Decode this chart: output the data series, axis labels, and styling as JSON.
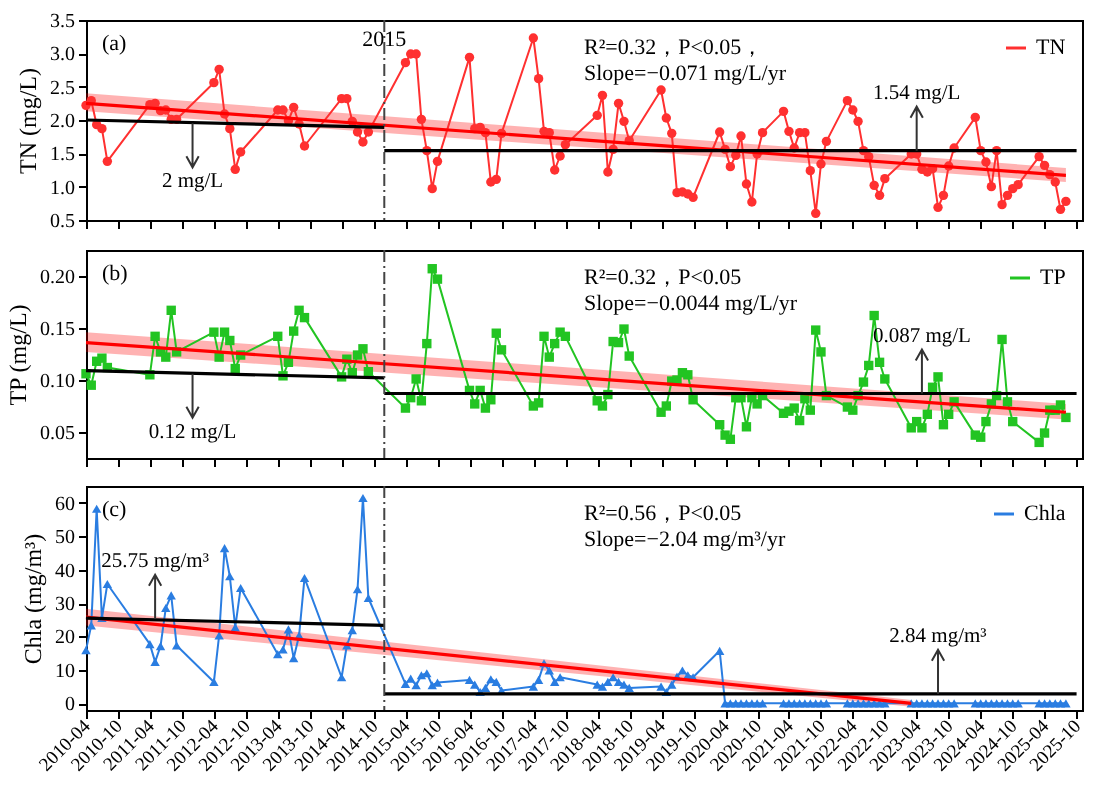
{
  "chart_data": [
    {
      "type": "line",
      "ylabel": "TN (mg/L)",
      "marker": "circle",
      "legend": "top right",
      "tick_labels": "y",
      "xlim": [
        "2010-04",
        "2025-11"
      ],
      "xticks": [
        "2010-04",
        "2010-10",
        "2011-04",
        "2011-10",
        "2012-04",
        "2012-10",
        "2013-04",
        "2013-10",
        "2014-04",
        "2014-10",
        "2015-04",
        "2015-10",
        "2016-04",
        "2016-10",
        "2017-04",
        "2017-10",
        "2018-04",
        "2018-10",
        "2019-04",
        "2019-10",
        "2020-04",
        "2020-10",
        "2021-04",
        "2021-10",
        "2022-04",
        "2022-10",
        "2023-04",
        "2023-10",
        "2024-04",
        "2024-10",
        "2025-04",
        "2025-10"
      ],
      "ylim": [
        0.5,
        3.5
      ],
      "yticks": [
        0.5,
        {
          "value": 1,
          "label": "1.0"
        },
        1.5,
        {
          "value": 2,
          "label": "2.0"
        },
        2.5,
        {
          "value": 3,
          "label": "3.0"
        },
        3.5
      ],
      "series": [
        {
          "name": "TN",
          "color": "#ff3030",
          "x": [
            "2010-04",
            "2010-05",
            "2010-06",
            "2010-07",
            "2010-08",
            "2011-04",
            "2011-05",
            "2011-06",
            "2011-07",
            "2011-08",
            "2011-09",
            "2012-04",
            "2012-05",
            "2012-06",
            "2012-07",
            "2012-08",
            "2012-09",
            "2013-04",
            "2013-05",
            "2013-06",
            "2013-07",
            "2013-08",
            "2013-09",
            "2014-04",
            "2014-05",
            "2014-06",
            "2014-07",
            "2014-08",
            "2014-09",
            "2015-04",
            "2015-05",
            "2015-06",
            "2015-07",
            "2015-08",
            "2015-09",
            "2015-10",
            "2016-04",
            "2016-05",
            "2016-06",
            "2016-07",
            "2016-08",
            "2016-09",
            "2016-10",
            "2017-04",
            "2017-05",
            "2017-06",
            "2017-07",
            "2017-08",
            "2017-09",
            "2017-10",
            "2018-04",
            "2018-05",
            "2018-06",
            "2018-07",
            "2018-08",
            "2018-09",
            "2018-10",
            "2019-04",
            "2019-05",
            "2019-06",
            "2019-07",
            "2019-08",
            "2019-09",
            "2019-10",
            "2020-03",
            "2020-04",
            "2020-05",
            "2020-06",
            "2020-07",
            "2020-08",
            "2020-09",
            "2020-10",
            "2020-11",
            "2021-03",
            "2021-04",
            "2021-05",
            "2021-06",
            "2021-07",
            "2021-08",
            "2021-09",
            "2021-10",
            "2021-11",
            "2022-03",
            "2022-04",
            "2022-05",
            "2022-06",
            "2022-07",
            "2022-08",
            "2022-09",
            "2022-10",
            "2023-03",
            "2023-04",
            "2023-05",
            "2023-06",
            "2023-07",
            "2023-08",
            "2023-09",
            "2023-10",
            "2023-11",
            "2024-03",
            "2024-04",
            "2024-05",
            "2024-06",
            "2024-07",
            "2024-08",
            "2024-09",
            "2024-10",
            "2024-11",
            "2025-03",
            "2025-04",
            "2025-05",
            "2025-06",
            "2025-07",
            "2025-08"
          ],
          "values": [
            2.22,
            2.29,
            1.93,
            1.87,
            1.38,
            2.23,
            2.25,
            2.14,
            2.15,
            2.01,
            2.01,
            2.56,
            2.76,
            2.09,
            1.87,
            1.26,
            1.52,
            2.15,
            2.15,
            1.99,
            2.19,
            1.94,
            1.61,
            2.32,
            2.32,
            1.98,
            1.82,
            1.67,
            1.82,
            2.86,
            2.99,
            2.99,
            2.01,
            1.54,
            0.97,
            1.38,
            2.94,
            1.87,
            1.89,
            1.81,
            1.07,
            1.11,
            1.8,
            3.23,
            2.62,
            1.83,
            1.81,
            1.25,
            1.46,
            1.63,
            2.07,
            2.37,
            1.22,
            1.56,
            2.25,
            1.98,
            1.69,
            2.45,
            2.03,
            1.8,
            0.91,
            0.92,
            0.89,
            0.84,
            1.82,
            1.56,
            1.3,
            1.47,
            1.76,
            1.04,
            0.77,
            1.49,
            1.81,
            2.13,
            1.83,
            1.58,
            1.81,
            1.81,
            1.24,
            0.6,
            1.34,
            1.68,
            2.29,
            2.15,
            1.98,
            1.54,
            1.45,
            1.02,
            0.87,
            1.12,
            1.49,
            1.49,
            1.26,
            1.22,
            1.27,
            0.69,
            0.87,
            1.31,
            1.58,
            2.04,
            1.54,
            1.37,
            1,
            1.54,
            0.73,
            0.87,
            0.97,
            1.03,
            1.45,
            1.32,
            1.18,
            1.07,
            0.66,
            0.78
          ]
        },
        {
          "type": "line",
          "marker": "none",
          "color": "#ff0000",
          "x": [
            "2010-04",
            "2025-08"
          ],
          "values": [
            2.25,
            1.17
          ],
          "lower": [
            2.13,
            1.07
          ],
          "upper": [
            2.4,
            1.28
          ]
        },
        {
          "type": "line",
          "marker": "none",
          "color": "#000000",
          "x": [
            "2010-04",
            "2014-12"
          ],
          "values": [
            2.0,
            1.89
          ]
        },
        {
          "type": "line",
          "marker": "none",
          "color": "#000000",
          "x": [
            "2014-12",
            "2025-10"
          ],
          "values": [
            1.54,
            1.54
          ]
        }
      ],
      "ref_lines": [
        {
          "axis": "x",
          "value": "2014-12",
          "label": "2015",
          "line_style": "dashed",
          "color": "#444444"
        }
      ],
      "annotations": [
        "(a)",
        "R²=0.32，P<0.05，",
        "Slope=−0.071 mg/L/yr",
        {
          "text": "2 mg/L",
          "x": "2011-12",
          "y": 1.95
        },
        {
          "text": "1.54 mg/L",
          "x": "2023-04",
          "y": 1.54
        }
      ]
    },
    {
      "type": "line",
      "ylabel": "TP (mg/L)",
      "marker": "square",
      "legend": "top right",
      "tick_labels": "y",
      "xlim": [
        "2010-04",
        "2025-11"
      ],
      "xticks": [
        "2010-04",
        "2010-10",
        "2011-04",
        "2011-10",
        "2012-04",
        "2012-10",
        "2013-04",
        "2013-10",
        "2014-04",
        "2014-10",
        "2015-04",
        "2015-10",
        "2016-04",
        "2016-10",
        "2017-04",
        "2017-10",
        "2018-04",
        "2018-10",
        "2019-04",
        "2019-10",
        "2020-04",
        "2020-10",
        "2021-04",
        "2021-10",
        "2022-04",
        "2022-10",
        "2023-04",
        "2023-10",
        "2024-04",
        "2024-10",
        "2025-04",
        "2025-10"
      ],
      "ylim": [
        0.025,
        0.225
      ],
      "yticks": [
        0.05,
        {
          "value": 0.1,
          "label": "0.10"
        },
        0.15,
        {
          "value": 0.2,
          "label": "0.20"
        }
      ],
      "series": [
        {
          "name": "TP",
          "color": "#22c422",
          "x": [
            "2010-04",
            "2010-05",
            "2010-06",
            "2010-07",
            "2010-08",
            "2011-04",
            "2011-05",
            "2011-06",
            "2011-07",
            "2011-08",
            "2011-09",
            "2012-04",
            "2012-05",
            "2012-06",
            "2012-07",
            "2012-08",
            "2012-09",
            "2013-04",
            "2013-05",
            "2013-06",
            "2013-07",
            "2013-08",
            "2013-09",
            "2014-04",
            "2014-05",
            "2014-06",
            "2014-07",
            "2014-08",
            "2014-09",
            "2015-04",
            "2015-05",
            "2015-06",
            "2015-07",
            "2015-08",
            "2015-09",
            "2015-10",
            "2016-04",
            "2016-05",
            "2016-06",
            "2016-07",
            "2016-08",
            "2016-09",
            "2016-10",
            "2017-04",
            "2017-05",
            "2017-06",
            "2017-07",
            "2017-08",
            "2017-09",
            "2017-10",
            "2018-04",
            "2018-05",
            "2018-06",
            "2018-07",
            "2018-08",
            "2018-09",
            "2018-10",
            "2019-04",
            "2019-05",
            "2019-06",
            "2019-07",
            "2019-08",
            "2019-09",
            "2019-10",
            "2020-03",
            "2020-04",
            "2020-05",
            "2020-06",
            "2020-07",
            "2020-08",
            "2020-09",
            "2020-10",
            "2020-11",
            "2021-03",
            "2021-04",
            "2021-05",
            "2021-06",
            "2021-07",
            "2021-08",
            "2021-09",
            "2021-10",
            "2021-11",
            "2022-03",
            "2022-04",
            "2022-05",
            "2022-06",
            "2022-07",
            "2022-08",
            "2022-09",
            "2022-10",
            "2023-03",
            "2023-04",
            "2023-05",
            "2023-06",
            "2023-07",
            "2023-08",
            "2023-09",
            "2023-10",
            "2023-11",
            "2024-03",
            "2024-04",
            "2024-05",
            "2024-06",
            "2024-07",
            "2024-08",
            "2024-09",
            "2024-10",
            "2025-03",
            "2025-04",
            "2025-05",
            "2025-06",
            "2025-07",
            "2025-08"
          ],
          "values": [
            0.106,
            0.095,
            0.118,
            0.121,
            0.112,
            0.105,
            0.142,
            0.127,
            0.122,
            0.167,
            0.127,
            0.146,
            0.122,
            0.146,
            0.138,
            0.111,
            0.124,
            0.142,
            0.104,
            0.117,
            0.147,
            0.167,
            0.16,
            0.103,
            0.12,
            0.107,
            0.124,
            0.13,
            0.108,
            0.073,
            0.083,
            0.101,
            0.08,
            0.135,
            0.207,
            0.197,
            0.09,
            0.077,
            0.09,
            0.073,
            0.081,
            0.145,
            0.129,
            0.075,
            0.078,
            0.142,
            0.122,
            0.135,
            0.146,
            0.142,
            0.08,
            0.075,
            0.086,
            0.137,
            0.136,
            0.149,
            0.123,
            0.069,
            0.075,
            0.099,
            0.1,
            0.107,
            0.105,
            0.081,
            0.057,
            0.047,
            0.043,
            0.083,
            0.083,
            0.055,
            0.083,
            0.077,
            0.085,
            0.068,
            0.07,
            0.073,
            0.061,
            0.082,
            0.071,
            0.148,
            0.127,
            0.085,
            0.074,
            0.071,
            0.085,
            0.098,
            0.114,
            0.162,
            0.117,
            0.101,
            0.054,
            0.06,
            0.054,
            0.067,
            0.093,
            0.103,
            0.057,
            0.067,
            0.079,
            0.047,
            0.045,
            0.06,
            0.077,
            0.085,
            0.139,
            0.079,
            0.06,
            0.04,
            0.049,
            0.071,
            0.071,
            0.076,
            0.064
          ]
        },
        {
          "type": "line",
          "marker": "none",
          "color": "#ff0000",
          "x": [
            "2010-04",
            "2025-08"
          ],
          "values": [
            0.136,
            0.069
          ],
          "lower": [
            0.127,
            0.062
          ],
          "upper": [
            0.146,
            0.077
          ]
        },
        {
          "type": "line",
          "marker": "none",
          "color": "#000000",
          "x": [
            "2010-04",
            "2014-12"
          ],
          "values": [
            0.109,
            0.102
          ]
        },
        {
          "type": "line",
          "marker": "none",
          "color": "#000000",
          "x": [
            "2014-12",
            "2025-10"
          ],
          "values": [
            0.087,
            0.087
          ]
        }
      ],
      "ref_lines": [
        {
          "axis": "x",
          "value": "2014-12",
          "line_style": "dashed",
          "color": "#444444"
        }
      ],
      "annotations": [
        "(b)",
        "R²=0.32，P<0.05",
        "Slope=−0.0044 mg/L/yr",
        {
          "text": "0.12 mg/L",
          "x": "2011-12",
          "y": 0.106
        },
        {
          "text": "0.087 mg/L",
          "x": "2023-05",
          "y": 0.087
        }
      ]
    },
    {
      "type": "line",
      "ylabel": "Chla (mg/m³)",
      "marker": "triangle",
      "legend": "top right",
      "xlim": [
        "2010-04",
        "2025-11"
      ],
      "xticks": [
        "2010-04",
        "2010-10",
        "2011-04",
        "2011-10",
        "2012-04",
        "2012-10",
        "2013-04",
        "2013-10",
        "2014-04",
        "2014-10",
        "2015-04",
        "2015-10",
        "2016-04",
        "2016-10",
        "2017-04",
        "2017-10",
        "2018-04",
        "2018-10",
        "2019-04",
        "2019-10",
        "2020-04",
        "2020-10",
        "2021-04",
        "2021-10",
        "2022-04",
        "2022-10",
        "2023-04",
        "2023-10",
        "2024-04",
        "2024-10",
        "2025-04",
        "2025-10"
      ],
      "ylim": [
        -2,
        65
      ],
      "yticks": [
        0,
        10,
        20,
        30,
        40,
        50,
        60
      ],
      "series": [
        {
          "name": "Chla",
          "color": "#2a7de1",
          "x": [
            "2010-04",
            "2010-05",
            "2010-06",
            "2010-07",
            "2010-08",
            "2011-04",
            "2011-05",
            "2011-06",
            "2011-07",
            "2011-08",
            "2011-09",
            "2012-04",
            "2012-05",
            "2012-06",
            "2012-07",
            "2012-08",
            "2012-09",
            "2013-04",
            "2013-05",
            "2013-06",
            "2013-07",
            "2013-08",
            "2013-09",
            "2014-04",
            "2014-05",
            "2014-06",
            "2014-07",
            "2014-08",
            "2014-09",
            "2015-04",
            "2015-05",
            "2015-06",
            "2015-07",
            "2015-08",
            "2015-09",
            "2015-10",
            "2016-04",
            "2016-05",
            "2016-06",
            "2016-07",
            "2016-08",
            "2016-09",
            "2016-10",
            "2017-04",
            "2017-05",
            "2017-06",
            "2017-07",
            "2017-08",
            "2017-09",
            "2018-04",
            "2018-05",
            "2018-06",
            "2018-07",
            "2018-08",
            "2018-09",
            "2018-10",
            "2019-04",
            "2019-05",
            "2019-06",
            "2019-07",
            "2019-08",
            "2019-09",
            "2019-10",
            "2020-03",
            "2020-04",
            "2020-05",
            "2020-06",
            "2020-07",
            "2020-08",
            "2020-09",
            "2020-10",
            "2020-11",
            "2021-03",
            "2021-04",
            "2021-05",
            "2021-06",
            "2021-07",
            "2021-08",
            "2021-09",
            "2021-10",
            "2021-11",
            "2022-03",
            "2022-04",
            "2022-05",
            "2022-06",
            "2022-07",
            "2022-08",
            "2022-09",
            "2022-10",
            "2023-03",
            "2023-04",
            "2023-05",
            "2023-06",
            "2023-07",
            "2023-08",
            "2023-09",
            "2023-10",
            "2023-11",
            "2024-03",
            "2024-04",
            "2024-05",
            "2024-06",
            "2024-07",
            "2024-08",
            "2024-09",
            "2024-10",
            "2024-11",
            "2025-03",
            "2025-04",
            "2025-05",
            "2025-06",
            "2025-07",
            "2025-08"
          ],
          "values": [
            15.9,
            23.3,
            58.2,
            25.5,
            35.7,
            17.7,
            12.4,
            17.1,
            28.5,
            32.3,
            17.3,
            6.4,
            20.3,
            46.4,
            38,
            22.7,
            34.5,
            14.7,
            16.1,
            22.1,
            13.5,
            20.3,
            37.5,
            7.8,
            17.3,
            21.9,
            34.1,
            61.4,
            31.5,
            5.8,
            7.4,
            5.4,
            8.4,
            9,
            5.4,
            6.2,
            7,
            5.6,
            3.4,
            4.6,
            7.2,
            6.4,
            3.8,
            5,
            7,
            12,
            9.8,
            6.4,
            7.8,
            5.6,
            5,
            6.4,
            7.8,
            6.4,
            5.6,
            4.6,
            5,
            3.4,
            5.6,
            8,
            9.8,
            8.4,
            7.8,
            15.7,
            0,
            0,
            0,
            0,
            0,
            0,
            0,
            0,
            0,
            0,
            0,
            0,
            0,
            0,
            0,
            0,
            0,
            0,
            0,
            0,
            0,
            0,
            0,
            0,
            0,
            0,
            0,
            0,
            0,
            0,
            0,
            0,
            0,
            0,
            0,
            0,
            0,
            0,
            0,
            0,
            0,
            0,
            0,
            0,
            0,
            0,
            0,
            0,
            0
          ]
        },
        {
          "type": "line",
          "marker": "none",
          "color": "#ff0000",
          "x": [
            "2010-04",
            "2023-03"
          ],
          "values": [
            25.8,
            0
          ],
          "lower": [
            23.3,
            -1
          ],
          "upper": [
            28.3,
            1
          ]
        },
        {
          "type": "line",
          "marker": "none",
          "color": "#000000",
          "x": [
            "2010-04",
            "2014-12"
          ],
          "values": [
            25.5,
            23.3
          ]
        },
        {
          "type": "line",
          "marker": "none",
          "color": "#000000",
          "x": [
            "2014-12",
            "2025-10"
          ],
          "values": [
            2.84,
            2.84
          ]
        }
      ],
      "ref_lines": [
        {
          "axis": "x",
          "value": "2014-12",
          "line_style": "dashed",
          "color": "#444444"
        }
      ],
      "annotations": [
        "(c)",
        "R²=0.56，P<0.05",
        "Slope=−2.04 mg/m³/yr",
        {
          "text": "25.75 mg/m³",
          "x": "2011-05",
          "y": 25.3
        },
        {
          "text": "2.84 mg/m³",
          "x": "2023-08",
          "y": 2.84
        }
      ]
    }
  ]
}
